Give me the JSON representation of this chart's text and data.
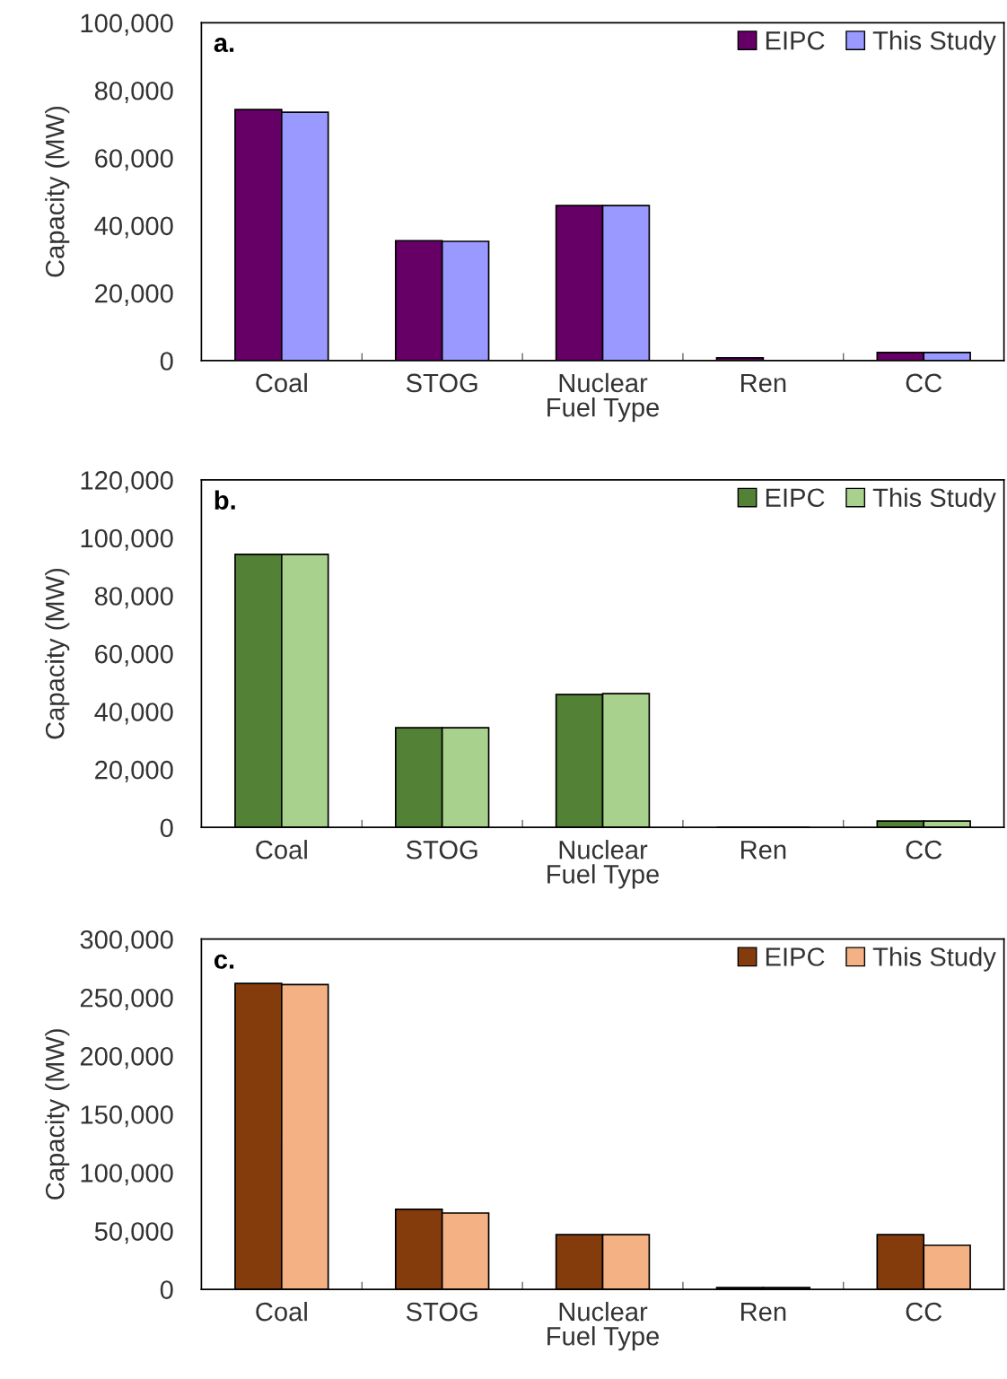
{
  "chart_data": [
    {
      "type": "bar",
      "annotations": [
        "a."
      ],
      "xlabel": "Fuel Type",
      "ylabel": "Capacity (MW)",
      "categories": [
        "Coal",
        "STOG",
        "Nuclear",
        "Ren",
        "CC"
      ],
      "ylim": [
        0,
        100000
      ],
      "yticks": [
        {
          "value": 0,
          "label": "0"
        },
        {
          "value": 20000,
          "label": "20,000"
        },
        {
          "value": 40000,
          "label": "40,000"
        },
        {
          "value": 60000,
          "label": "60,000"
        },
        {
          "value": 80000,
          "label": "80,000"
        },
        {
          "value": 100000,
          "label": "100,000"
        }
      ],
      "legend": "top right",
      "grid": false,
      "series": [
        {
          "name": "EIPC",
          "color": "#660066",
          "values": [
            74300,
            35500,
            45900,
            800,
            2400
          ]
        },
        {
          "name": "This Study",
          "color": "#9999ff",
          "values": [
            73500,
            35300,
            45900,
            null,
            2400
          ]
        }
      ]
    },
    {
      "type": "bar",
      "annotations": [
        "b."
      ],
      "xlabel": "Fuel Type",
      "ylabel": "Capacity (MW)",
      "categories": [
        "Coal",
        "STOG",
        "Nuclear",
        "Ren",
        "CC"
      ],
      "ylim": [
        0,
        120000
      ],
      "yticks": [
        {
          "value": 0,
          "label": "0"
        },
        {
          "value": 20000,
          "label": "20,000"
        },
        {
          "value": 40000,
          "label": "40,000"
        },
        {
          "value": 60000,
          "label": "60,000"
        },
        {
          "value": 80000,
          "label": "80,000"
        },
        {
          "value": 100000,
          "label": "100,000"
        },
        {
          "value": 120000,
          "label": "120,000"
        }
      ],
      "legend": "top right",
      "grid": false,
      "series": [
        {
          "name": "EIPC",
          "color": "#538135",
          "values": [
            94300,
            34400,
            45900,
            null,
            2200
          ]
        },
        {
          "name": "This Study",
          "color": "#a9d18e",
          "values": [
            94300,
            34400,
            46200,
            null,
            2200
          ]
        }
      ]
    },
    {
      "type": "bar",
      "annotations": [
        "c."
      ],
      "xlabel": "Fuel Type",
      "ylabel": "Capacity (MW)",
      "categories": [
        "Coal",
        "STOG",
        "Nuclear",
        "Ren",
        "CC"
      ],
      "ylim": [
        0,
        300000
      ],
      "yticks": [
        {
          "value": 0,
          "label": "0"
        },
        {
          "value": 50000,
          "label": "50,000"
        },
        {
          "value": 100000,
          "label": "100,000"
        },
        {
          "value": 150000,
          "label": "150,000"
        },
        {
          "value": 200000,
          "label": "200,000"
        },
        {
          "value": 250000,
          "label": "250,000"
        },
        {
          "value": 300000,
          "label": "300,000"
        }
      ],
      "legend": "top right",
      "grid": false,
      "series": [
        {
          "name": "EIPC",
          "color": "#843c0c",
          "values": [
            262000,
            68500,
            46900,
            1500,
            46900
          ]
        },
        {
          "name": "This Study",
          "color": "#f4b183",
          "values": [
            261000,
            65400,
            46900,
            1500,
            37700
          ]
        }
      ]
    }
  ]
}
